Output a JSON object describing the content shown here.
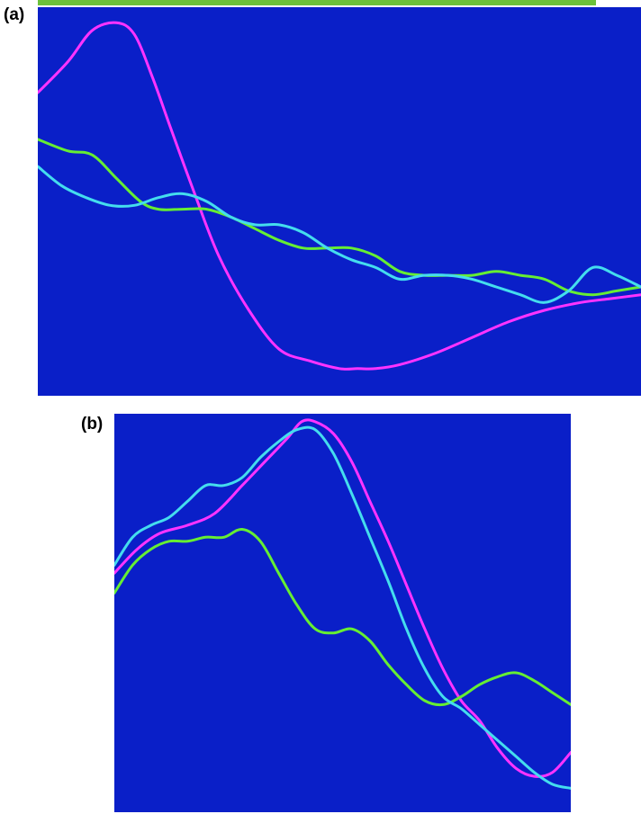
{
  "colors": {
    "background": "#0a1fc8",
    "top_rule": "#6cc13a"
  },
  "chart_data": [
    {
      "panel_label": "(a)",
      "type": "line",
      "xlim": [
        0,
        100
      ],
      "ylim": [
        0,
        100
      ],
      "grid": false,
      "legend": "none",
      "series": [
        {
          "color": "#ff33ff",
          "x": [
            0,
            5,
            9,
            13,
            16,
            19,
            22,
            26,
            30,
            35,
            40,
            45,
            50,
            53,
            56,
            60,
            66,
            72,
            78,
            84,
            90,
            95,
            100
          ],
          "y": [
            78,
            86,
            94,
            96,
            93,
            82,
            69,
            52,
            36,
            22,
            12,
            9,
            7,
            7,
            7,
            8,
            11,
            15,
            19,
            22,
            24,
            25,
            26
          ]
        },
        {
          "color": "#66ee33",
          "x": [
            0,
            5,
            9,
            13,
            17,
            20,
            24,
            28,
            32,
            36,
            40,
            44,
            48,
            52,
            56,
            60,
            64,
            68,
            72,
            76,
            80,
            84,
            88,
            92,
            96,
            100
          ],
          "y": [
            66,
            63,
            62,
            56,
            50,
            48,
            48,
            48,
            46,
            43,
            40,
            38,
            38,
            38,
            36,
            32,
            31,
            31,
            31,
            32,
            31,
            30,
            27,
            26,
            27,
            28
          ]
        },
        {
          "color": "#44ddee",
          "x": [
            0,
            4,
            8,
            12,
            16,
            20,
            24,
            28,
            32,
            36,
            40,
            44,
            48,
            52,
            56,
            60,
            64,
            68,
            72,
            76,
            80,
            84,
            88,
            92,
            96,
            100
          ],
          "y": [
            59,
            54,
            51,
            49,
            49,
            51,
            52,
            50,
            46,
            44,
            44,
            42,
            38,
            35,
            33,
            30,
            31,
            31,
            30,
            28,
            26,
            24,
            27,
            33,
            31,
            28
          ]
        }
      ]
    },
    {
      "panel_label": "(b)",
      "type": "line",
      "xlim": [
        0,
        100
      ],
      "ylim": [
        0,
        100
      ],
      "grid": false,
      "legend": "none",
      "series": [
        {
          "color": "#ff33ff",
          "x": [
            0,
            5,
            10,
            16,
            22,
            28,
            33,
            38,
            41,
            44,
            48,
            52,
            56,
            60,
            64,
            68,
            72,
            76,
            80,
            84,
            88,
            92,
            96,
            100
          ],
          "y": [
            60,
            66,
            70,
            72,
            75,
            82,
            88,
            94,
            98,
            98,
            95,
            88,
            78,
            68,
            57,
            46,
            36,
            28,
            23,
            16,
            11,
            9,
            10,
            15
          ]
        },
        {
          "color": "#66ee33",
          "x": [
            0,
            4,
            8,
            12,
            16,
            20,
            24,
            28,
            32,
            36,
            40,
            44,
            48,
            52,
            56,
            60,
            64,
            68,
            72,
            76,
            80,
            84,
            88,
            92,
            96,
            100
          ],
          "y": [
            55,
            62,
            66,
            68,
            68,
            69,
            69,
            71,
            68,
            60,
            52,
            46,
            45,
            46,
            43,
            37,
            32,
            28,
            27,
            29,
            32,
            34,
            35,
            33,
            30,
            27
          ]
        },
        {
          "color": "#44ddee",
          "x": [
            0,
            4,
            8,
            12,
            16,
            20,
            24,
            28,
            32,
            36,
            40,
            44,
            48,
            52,
            56,
            60,
            64,
            68,
            72,
            76,
            80,
            84,
            88,
            92,
            96,
            100
          ],
          "y": [
            62,
            69,
            72,
            74,
            78,
            82,
            82,
            84,
            89,
            93,
            96,
            96,
            90,
            80,
            69,
            58,
            46,
            36,
            29,
            26,
            22,
            18,
            14,
            10,
            7,
            6
          ]
        }
      ]
    }
  ]
}
